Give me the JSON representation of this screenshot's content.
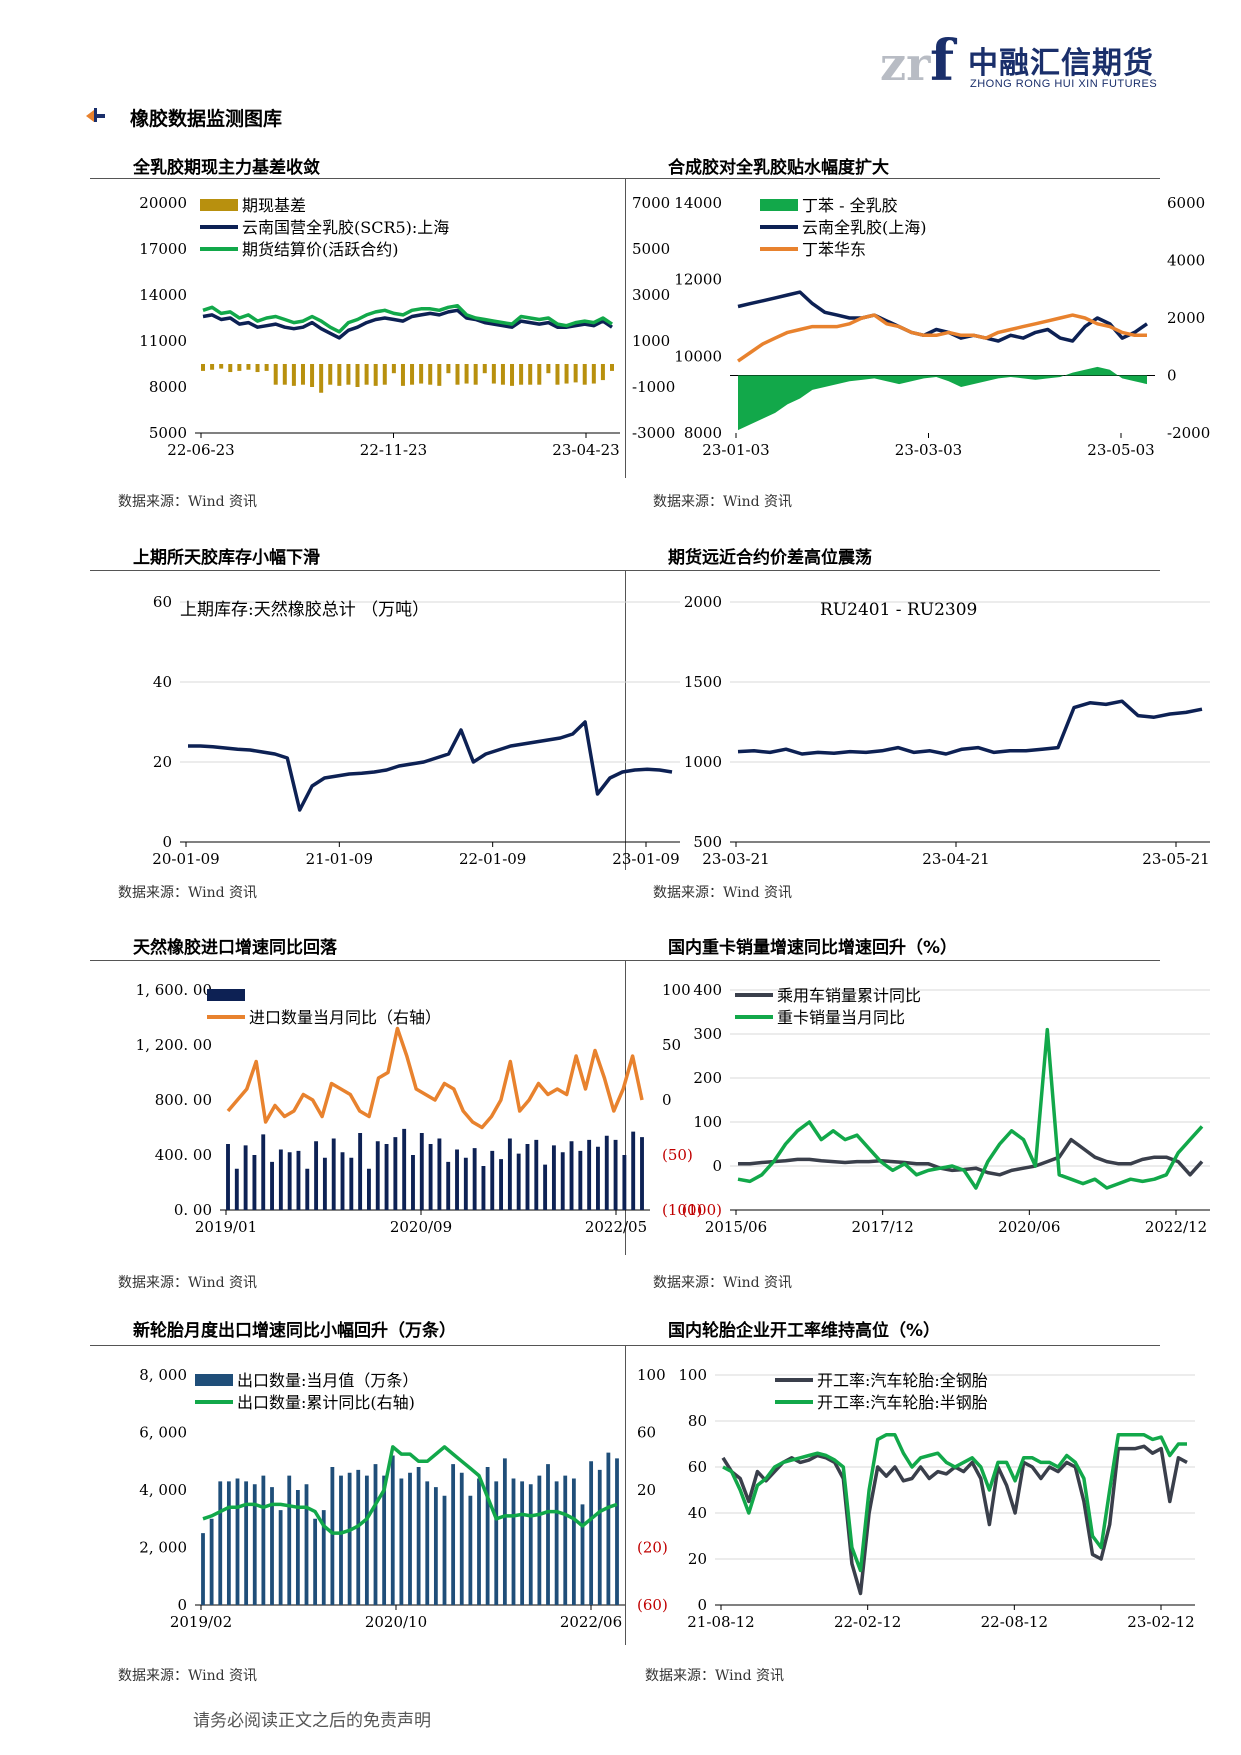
{
  "header": {
    "logo_text": "中融汇信期货",
    "logo_sub": "ZHONG RONG HUI XIN FUTURES",
    "section_title": "橡胶数据监测图库"
  },
  "footer": "请务必阅读正文之后的免责声明",
  "source_label": "数据来源：Wind 资讯",
  "colors": {
    "navy": "#0d2154",
    "green": "#12a84a",
    "orange": "#e8822e",
    "gold": "#b8900e",
    "darkgray": "#3a3f4b",
    "red": "#c00000"
  },
  "chart_data": [
    {
      "id": "c1",
      "type": "line",
      "title": "全乳胶期现主力基差收敛",
      "x_ticks": [
        "22-06-23",
        "22-11-23",
        "23-04-23"
      ],
      "ylim": [
        5000,
        20000
      ],
      "y_ticks": [
        "20000",
        "17000",
        "14000",
        "11000",
        "8000",
        "5000"
      ],
      "y2lim": [
        -3000,
        7000
      ],
      "y2_ticks": [
        "7000",
        "5000",
        "3000",
        "1000",
        "-1000",
        "-3000"
      ],
      "series": [
        {
          "name": "期现基差",
          "kind": "bar",
          "axis": "right",
          "color": "#b8900e",
          "values": [
            -300,
            -250,
            -200,
            -350,
            -300,
            -250,
            -350,
            -300,
            -900,
            -900,
            -950,
            -900,
            -1000,
            -1250,
            -900,
            -950,
            -900,
            -1000,
            -900,
            -950,
            -900,
            -400,
            -950,
            -900,
            -850,
            -900,
            -950,
            -400,
            -900,
            -850,
            -900,
            -400,
            -850,
            -900,
            -950,
            -900,
            -900,
            -900,
            -400,
            -900,
            -850,
            -800,
            -900,
            -850,
            -700,
            -300
          ]
        },
        {
          "name": "云南国营全乳胶(SCR5):上海",
          "kind": "line",
          "axis": "left",
          "color": "#0d2154",
          "values": [
            12600,
            12700,
            12400,
            12500,
            12100,
            12200,
            11900,
            12000,
            12100,
            11900,
            11800,
            11900,
            12200,
            11800,
            11500,
            11200,
            11700,
            11900,
            12200,
            12400,
            12500,
            12400,
            12300,
            12600,
            12700,
            12800,
            12700,
            12900,
            13000,
            12500,
            12400,
            12200,
            12100,
            12000,
            11900,
            12300,
            12200,
            12100,
            12200,
            11900,
            11900,
            12000,
            12100,
            12000,
            12300,
            11900
          ]
        },
        {
          "name": "期货结算价(活跃合约)",
          "kind": "line",
          "axis": "left",
          "color": "#12a84a",
          "values": [
            13000,
            13200,
            12800,
            12900,
            12500,
            12700,
            12300,
            12500,
            12600,
            12400,
            12200,
            12300,
            12600,
            12300,
            11900,
            11600,
            12200,
            12400,
            12700,
            12900,
            13000,
            12800,
            12700,
            13000,
            13100,
            13100,
            13000,
            13200,
            13300,
            12700,
            12500,
            12400,
            12300,
            12200,
            12100,
            12600,
            12500,
            12400,
            12500,
            12100,
            12000,
            12200,
            12300,
            12200,
            12500,
            12100
          ]
        }
      ]
    },
    {
      "id": "c2",
      "type": "line",
      "title": "合成胶对全乳胶贴水幅度扩大",
      "x_ticks": [
        "23-01-03",
        "23-03-03",
        "23-05-03"
      ],
      "ylim": [
        8000,
        16000
      ],
      "y_ticks": [
        "14000",
        "12000",
        "10000",
        "8000"
      ],
      "y2lim": [
        -2000,
        6000
      ],
      "y2_ticks": [
        "6000",
        "4000",
        "2000",
        "0",
        "-2000"
      ],
      "series": [
        {
          "name": "丁苯 - 全乳胶",
          "kind": "area",
          "axis": "right",
          "color": "#12a84a",
          "values": [
            -1900,
            -1700,
            -1500,
            -1300,
            -1000,
            -800,
            -500,
            -400,
            -300,
            -200,
            -150,
            -100,
            -200,
            -300,
            -200,
            -100,
            -50,
            -200,
            -400,
            -300,
            -200,
            -100,
            -50,
            -100,
            -150,
            -100,
            -50,
            100,
            200,
            300,
            200,
            -100,
            -200,
            -300
          ]
        },
        {
          "name": "云南全乳胶(上海)",
          "kind": "line",
          "axis": "left",
          "color": "#0d2154",
          "values": [
            12400,
            12500,
            12600,
            12700,
            12800,
            12900,
            12500,
            12200,
            12100,
            12000,
            12000,
            12100,
            11900,
            11700,
            11500,
            11400,
            11600,
            11500,
            11300,
            11400,
            11300,
            11200,
            11400,
            11300,
            11500,
            11600,
            11300,
            11200,
            11700,
            12000,
            11800,
            11300,
            11500,
            11800
          ]
        },
        {
          "name": "丁苯华东",
          "kind": "line",
          "axis": "left",
          "color": "#e8822e",
          "values": [
            10500,
            10800,
            11100,
            11300,
            11500,
            11600,
            11700,
            11700,
            11700,
            11800,
            12000,
            12100,
            11800,
            11700,
            11500,
            11400,
            11400,
            11500,
            11400,
            11400,
            11300,
            11500,
            11600,
            11700,
            11800,
            11900,
            12000,
            12100,
            12000,
            11800,
            11700,
            11500,
            11400,
            11400
          ]
        }
      ]
    },
    {
      "id": "c3",
      "type": "line",
      "title": "上期所天胶库存小幅下滑",
      "inner_label": "上期库存:天然橡胶总计  （万吨）",
      "x_ticks": [
        "20-01-09",
        "21-01-09",
        "22-01-09",
        "23-01-09"
      ],
      "ylim": [
        0,
        60
      ],
      "y_ticks": [
        "60",
        "40",
        "20",
        "0"
      ],
      "series": [
        {
          "name": "上期库存:天然橡胶总计",
          "kind": "line",
          "color": "#0d2154",
          "values": [
            24,
            24,
            23.8,
            23.5,
            23.2,
            23,
            22.5,
            22,
            21,
            8,
            14,
            16,
            16.5,
            17,
            17.2,
            17.5,
            18,
            19,
            19.5,
            20,
            21,
            22,
            28,
            20,
            22,
            23,
            24,
            24.5,
            25,
            25.5,
            26,
            27,
            30,
            12,
            16,
            17.5,
            18,
            18.2,
            18,
            17.5
          ]
        }
      ]
    },
    {
      "id": "c4",
      "type": "line",
      "title": "期货远近合约价差高位震荡",
      "inner_label": "RU2401 - RU2309",
      "x_ticks": [
        "23-03-21",
        "23-04-21",
        "23-05-21"
      ],
      "ylim": [
        500,
        2000
      ],
      "y_ticks": [
        "2000",
        "1500",
        "1000",
        "500"
      ],
      "series": [
        {
          "name": "RU2401 - RU2309",
          "kind": "line",
          "color": "#0d2154",
          "values": [
            1065,
            1070,
            1060,
            1080,
            1050,
            1060,
            1055,
            1065,
            1060,
            1070,
            1090,
            1060,
            1070,
            1050,
            1080,
            1090,
            1060,
            1070,
            1070,
            1080,
            1090,
            1340,
            1370,
            1360,
            1380,
            1290,
            1280,
            1300,
            1310,
            1330
          ]
        }
      ]
    },
    {
      "id": "c5",
      "type": "bar",
      "title": "天然橡胶进口增速同比回落",
      "x_ticks": [
        "2019/01",
        "2020/09",
        "2022/05"
      ],
      "ylim": [
        0,
        1600
      ],
      "y_ticks": [
        "1, 600. 00",
        "1, 200. 00",
        "800. 00",
        "400. 00",
        "0. 00"
      ],
      "y2lim": [
        -100,
        100
      ],
      "y2_ticks": [
        "100",
        "50",
        "0",
        "(50)",
        "(100)"
      ],
      "series": [
        {
          "name": "",
          "kind": "bar",
          "axis": "left",
          "color": "#0d2154",
          "values": [
            480,
            300,
            470,
            400,
            550,
            350,
            440,
            420,
            430,
            300,
            500,
            380,
            520,
            420,
            380,
            560,
            300,
            500,
            480,
            530,
            590,
            400,
            560,
            480,
            520,
            350,
            440,
            380,
            450,
            320,
            430,
            370,
            520,
            410,
            480,
            510,
            330,
            470,
            420,
            500,
            430,
            510,
            460,
            540,
            510,
            400,
            570,
            530
          ]
        },
        {
          "name": "进口数量当月同比（右轴）",
          "kind": "line",
          "axis": "right",
          "color": "#e8822e",
          "values": [
            -10,
            0,
            10,
            35,
            -20,
            -5,
            -15,
            -10,
            5,
            0,
            -15,
            15,
            10,
            5,
            -10,
            -15,
            20,
            25,
            65,
            40,
            10,
            5,
            0,
            15,
            10,
            -10,
            -20,
            -25,
            -15,
            0,
            35,
            -10,
            0,
            15,
            5,
            10,
            5,
            40,
            10,
            45,
            20,
            -10,
            10,
            40,
            0
          ]
        }
      ]
    },
    {
      "id": "c6",
      "type": "line",
      "title": "国内重卡销量增速同比增速回升（%）",
      "x_ticks": [
        "2015/06",
        "2017/12",
        "2020/06",
        "2022/12"
      ],
      "ylim": [
        -100,
        400
      ],
      "y_ticks": [
        "400",
        "300",
        "200",
        "100",
        "0",
        "(100)"
      ],
      "series": [
        {
          "name": "乘用车销量累计同比",
          "kind": "line",
          "color": "#3a3f4b",
          "values": [
            5,
            5,
            8,
            10,
            12,
            15,
            15,
            12,
            10,
            8,
            10,
            10,
            12,
            10,
            8,
            5,
            5,
            -5,
            -10,
            -8,
            -5,
            -15,
            -20,
            -10,
            -5,
            0,
            10,
            20,
            60,
            40,
            20,
            10,
            5,
            5,
            15,
            20,
            20,
            10,
            -20,
            10
          ]
        },
        {
          "name": "重卡销量当月同比",
          "kind": "line",
          "color": "#12a84a",
          "values": [
            -30,
            -35,
            -20,
            10,
            50,
            80,
            100,
            60,
            80,
            60,
            70,
            40,
            10,
            -10,
            5,
            -20,
            -10,
            -5,
            0,
            -10,
            -50,
            10,
            50,
            80,
            60,
            0,
            310,
            -20,
            -30,
            -40,
            -30,
            -50,
            -40,
            -30,
            -35,
            -30,
            -20,
            30,
            60,
            90
          ]
        }
      ]
    },
    {
      "id": "c7",
      "type": "bar",
      "title": "新轮胎月度出口增速同比小幅回升（万条）",
      "x_ticks": [
        "2019/02",
        "2020/10",
        "2022/06"
      ],
      "ylim": [
        0,
        8000
      ],
      "y_ticks": [
        "8, 000",
        "6, 000",
        "4, 000",
        "2, 000",
        "0"
      ],
      "y2lim": [
        -60,
        100
      ],
      "y2_ticks": [
        "100",
        "60",
        "20",
        "(20)",
        "(60)"
      ],
      "series": [
        {
          "name": "出口数量:当月值（万条）",
          "kind": "bar",
          "axis": "left",
          "color": "#1f4e79",
          "values": [
            2500,
            3000,
            4300,
            4300,
            4400,
            4300,
            4200,
            4500,
            4100,
            3300,
            4500,
            4000,
            4200,
            3000,
            3300,
            4800,
            4500,
            4600,
            4700,
            4500,
            4900,
            4500,
            5200,
            4400,
            4600,
            4800,
            4300,
            4100,
            3800,
            4900,
            4600,
            3800,
            4400,
            4800,
            4300,
            5100,
            4400,
            4300,
            4200,
            4500,
            4900,
            4300,
            4500,
            4400,
            3500,
            5000,
            4700,
            5300,
            5100
          ]
        },
        {
          "name": "出口数量:累计同比(右轴)",
          "kind": "line",
          "axis": "right",
          "color": "#12a84a",
          "values": [
            0,
            2,
            5,
            8,
            8,
            10,
            10,
            8,
            10,
            10,
            9,
            8,
            8,
            5,
            -5,
            -10,
            -10,
            -8,
            -5,
            0,
            10,
            20,
            50,
            45,
            45,
            40,
            40,
            45,
            50,
            45,
            40,
            35,
            30,
            15,
            0,
            2,
            2,
            3,
            2,
            3,
            5,
            5,
            3,
            0,
            -5,
            0,
            5,
            8,
            10
          ]
        }
      ]
    },
    {
      "id": "c8",
      "type": "line",
      "title": "国内轮胎企业开工率维持高位（%）",
      "x_ticks": [
        "21-08-12",
        "22-02-12",
        "22-08-12",
        "23-02-12"
      ],
      "ylim": [
        0,
        100
      ],
      "y_ticks": [
        "100",
        "80",
        "60",
        "40",
        "20",
        "0"
      ],
      "series": [
        {
          "name": "开工率:汽车轮胎:全钢胎",
          "kind": "line",
          "color": "#3a3f4b",
          "values": [
            64,
            58,
            55,
            45,
            58,
            54,
            58,
            62,
            64,
            62,
            63,
            65,
            64,
            62,
            55,
            18,
            5,
            40,
            60,
            56,
            60,
            54,
            55,
            60,
            55,
            58,
            57,
            60,
            58,
            62,
            55,
            35,
            60,
            52,
            40,
            62,
            60,
            55,
            60,
            58,
            62,
            60,
            45,
            22,
            20,
            35,
            68,
            68,
            68,
            69,
            66,
            68,
            45,
            64,
            62
          ]
        },
        {
          "name": "开工率:汽车轮胎:半钢胎",
          "kind": "line",
          "color": "#12a84a",
          "values": [
            60,
            58,
            50,
            40,
            52,
            55,
            60,
            62,
            63,
            64,
            65,
            66,
            65,
            63,
            60,
            25,
            15,
            50,
            72,
            74,
            74,
            66,
            60,
            64,
            65,
            66,
            62,
            60,
            62,
            64,
            60,
            50,
            62,
            62,
            54,
            64,
            64,
            62,
            62,
            60,
            65,
            62,
            55,
            30,
            25,
            50,
            74,
            74,
            74,
            74,
            72,
            73,
            65,
            70,
            70
          ]
        }
      ]
    }
  ]
}
